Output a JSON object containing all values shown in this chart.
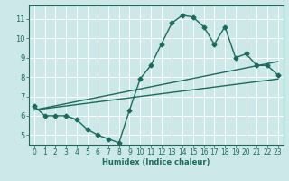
{
  "xlabel": "Humidex (Indice chaleur)",
  "ylabel": "",
  "bg_color": "#cde8e8",
  "grid_color": "#ffffff",
  "line_color": "#1a6b5e",
  "xlim": [
    -0.5,
    23.5
  ],
  "ylim": [
    4.5,
    11.7
  ],
  "xticks": [
    0,
    1,
    2,
    3,
    4,
    5,
    6,
    7,
    8,
    9,
    10,
    11,
    12,
    13,
    14,
    15,
    16,
    17,
    18,
    19,
    20,
    21,
    22,
    23
  ],
  "yticks": [
    5,
    6,
    7,
    8,
    9,
    10,
    11
  ],
  "main_x": [
    0,
    1,
    2,
    3,
    4,
    5,
    6,
    7,
    8,
    9,
    10,
    11,
    12,
    13,
    14,
    15,
    16,
    17,
    18,
    19,
    20,
    21,
    22,
    23
  ],
  "main_y": [
    6.5,
    6.0,
    6.0,
    6.0,
    5.8,
    5.3,
    5.0,
    4.8,
    4.6,
    6.3,
    7.9,
    8.6,
    9.7,
    10.8,
    11.2,
    11.1,
    10.6,
    9.7,
    10.6,
    9.0,
    9.2,
    8.6,
    8.6,
    8.1
  ],
  "trend1_x": [
    0,
    23
  ],
  "trend1_y": [
    6.3,
    7.9
  ],
  "trend2_x": [
    0,
    23
  ],
  "trend2_y": [
    6.3,
    8.8
  ],
  "marker_size": 2.5,
  "line_width": 1.0,
  "xlabel_fontsize": 6.0,
  "tick_fontsize": 5.5,
  "ytick_fontsize": 6.0
}
